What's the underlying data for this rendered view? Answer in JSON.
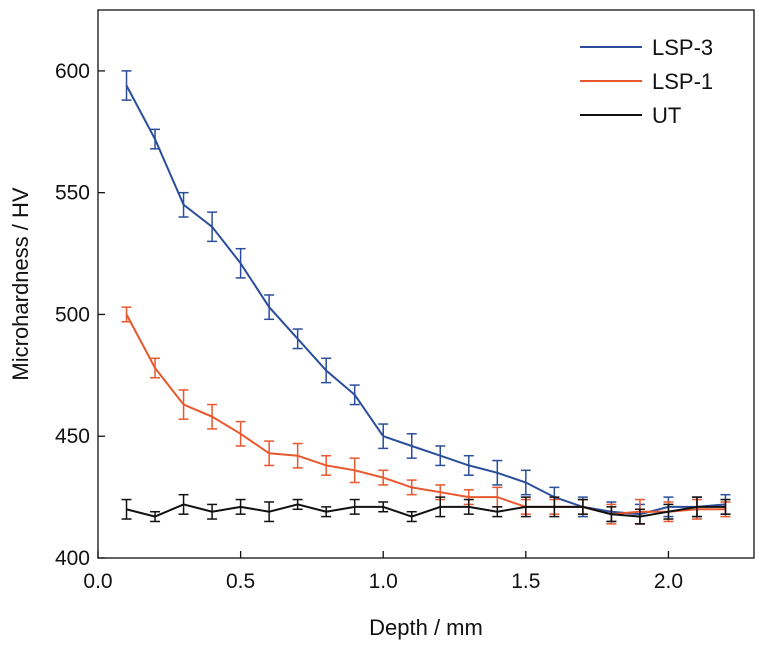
{
  "chart_data": {
    "type": "line",
    "xlabel": "Depth / mm",
    "ylabel": "Microhardness / HV",
    "xlim": [
      0.0,
      2.3
    ],
    "ylim": [
      400,
      625
    ],
    "xticks": [
      0.0,
      0.5,
      1.0,
      1.5,
      2.0
    ],
    "xtick_labels": [
      "0.0",
      "0.5",
      "1.0",
      "1.5",
      "2.0"
    ],
    "yticks": [
      400,
      450,
      500,
      550,
      600
    ],
    "ytick_labels": [
      "400",
      "450",
      "500",
      "550",
      "600"
    ],
    "grid": false,
    "legend_position": "top-right",
    "x": [
      0.1,
      0.2,
      0.3,
      0.4,
      0.5,
      0.6,
      0.7,
      0.8,
      0.9,
      1.0,
      1.1,
      1.2,
      1.3,
      1.4,
      1.5,
      1.6,
      1.7,
      1.8,
      1.9,
      2.0,
      2.1,
      2.2
    ],
    "series": [
      {
        "name": "LSP-3",
        "color": "#2a4e9c",
        "values": [
          594,
          572,
          545,
          536,
          521,
          503,
          490,
          477,
          467,
          450,
          446,
          442,
          438,
          435,
          431,
          425,
          421,
          419,
          418,
          421,
          421,
          422
        ],
        "errors": [
          6,
          4,
          5,
          6,
          6,
          5,
          4,
          5,
          4,
          5,
          5,
          4,
          4,
          5,
          5,
          4,
          4,
          4,
          4,
          4,
          4,
          4
        ]
      },
      {
        "name": "LSP-1",
        "color": "#e8582e",
        "values": [
          500,
          478,
          463,
          458,
          451,
          443,
          442,
          438,
          436,
          433,
          429,
          427,
          425,
          425,
          421,
          421,
          421,
          418,
          419,
          419,
          420,
          420
        ],
        "errors": [
          3,
          4,
          6,
          5,
          5,
          5,
          5,
          4,
          5,
          3,
          3,
          3,
          3,
          4,
          3,
          3,
          3,
          4,
          5,
          4,
          4,
          3
        ]
      },
      {
        "name": "UT",
        "color": "#111111",
        "values": [
          420,
          417,
          422,
          419,
          421,
          419,
          422,
          419,
          421,
          421,
          417,
          421,
          421,
          419,
          421,
          421,
          421,
          418,
          417,
          419,
          421,
          421
        ],
        "errors": [
          4,
          2,
          4,
          3,
          3,
          4,
          2,
          2,
          3,
          2,
          2,
          4,
          3,
          2,
          4,
          4,
          3,
          3,
          3,
          3,
          4,
          3
        ]
      }
    ]
  }
}
